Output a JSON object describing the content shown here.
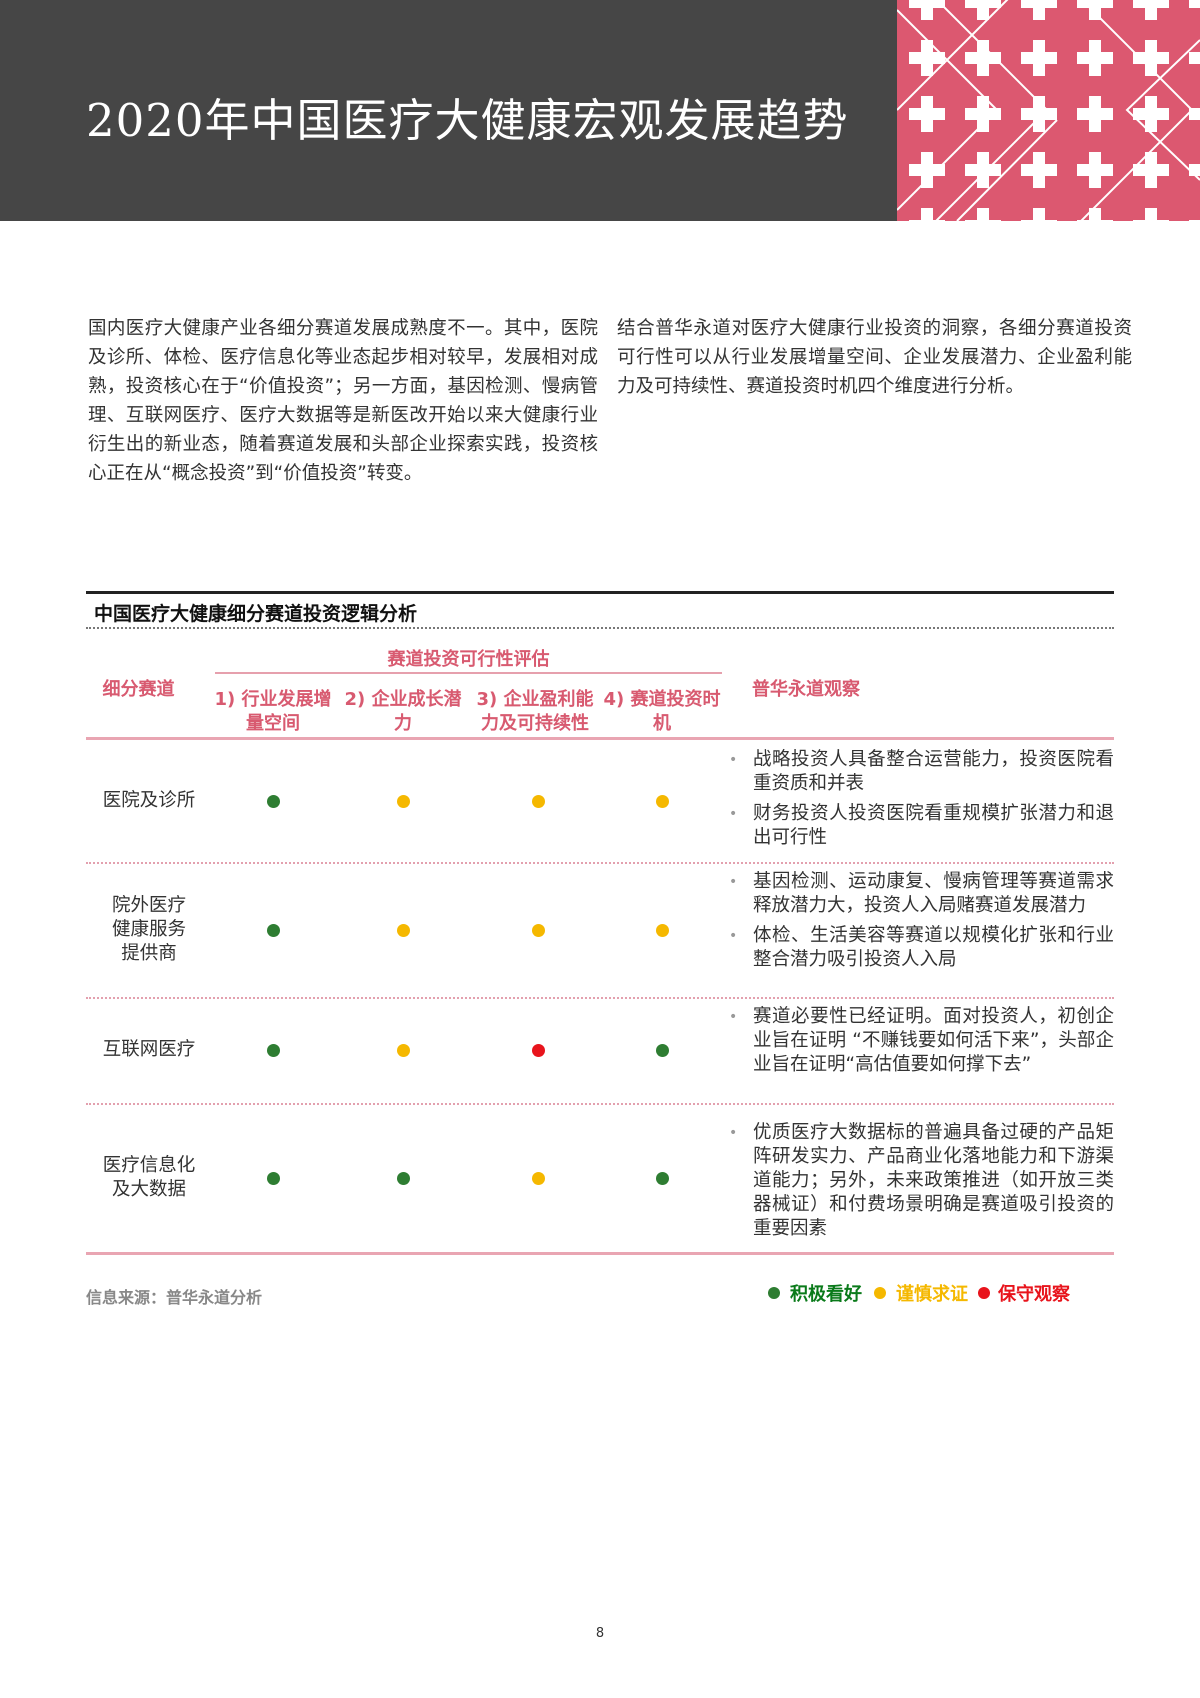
{
  "header": {
    "title": "2020年中国医疗大健康宏观发展趋势"
  },
  "intro": {
    "left": "国内医疗大健康产业各细分赛道发展成熟度不一。其中，医院及诊所、体检、医疗信息化等业态起步相对较早，发展相对成熟，投资核心在于“价值投资”；另一方面，基因检测、慢病管理、互联网医疗、医疗大数据等是新医改开始以来大健康行业衍生出的新业态，随着赛道发展和头部企业探索实践，投资核心正在从“概念投资”到“价值投资”转变。",
    "right": "结合普华永道对医疗大健康行业投资的洞察，各细分赛道投资可行性可以从行业发展增量空间、企业发展潜力、企业盈利能力及可持续性、赛道投资时机四个维度进行分析。"
  },
  "table": {
    "title": "中国医疗大健康细分赛道投资逻辑分析",
    "col_segment": "细分赛道",
    "group_header": "赛道投资可行性评估",
    "criteria": [
      "1) 行业发展增量空间",
      "2) 企业成长潜力",
      "3) 企业盈利能力及可持续性",
      "4) 赛道投资时机"
    ],
    "col_observation": "普华永道观察",
    "rows": [
      {
        "segment": "医院及诊所",
        "ratings": [
          "positive",
          "cautious",
          "cautious",
          "cautious"
        ],
        "observations": [
          "战略投资人具备整合运营能力，投资医院看重资质和并表",
          "财务投资人投资医院看重规模扩张潜力和退出可行性"
        ]
      },
      {
        "segment": "院外医疗健康服务提供商",
        "ratings": [
          "positive",
          "cautious",
          "cautious",
          "cautious"
        ],
        "observations": [
          "基因检测、运动康复、慢病管理等赛道需求释放潜力大，投资人入局赌赛道发展潜力",
          "体检、生活美容等赛道以规模化扩张和行业整合潜力吸引投资人入局"
        ]
      },
      {
        "segment": "互联网医疗",
        "ratings": [
          "positive",
          "cautious",
          "conservative",
          "positive"
        ],
        "observations": [
          "赛道必要性已经证明。面对投资人，初创企业旨在证明 “不赚钱要如何活下来”，头部企业旨在证明“高估值要如何撑下去”"
        ]
      },
      {
        "segment": "医疗信息化及大数据",
        "ratings": [
          "positive",
          "positive",
          "cautious",
          "positive"
        ],
        "observations": [
          "优质医疗大数据标的普遍具备过硬的产品矩阵研发实力、产品商业化落地能力和下游渠道能力；另外，未来政策推进（如开放三类器械证）和付费场景明确是赛道吸引投资的重要因素"
        ]
      }
    ]
  },
  "source": "信息来源：普华永道分析",
  "legend": [
    {
      "key": "positive",
      "label": "积极看好",
      "color": "#2e7d32"
    },
    {
      "key": "cautious",
      "label": "谨慎求证",
      "color": "#f5b800"
    },
    {
      "key": "conservative",
      "label": "保守观察",
      "color": "#e8141c"
    }
  ],
  "page_number": "8"
}
